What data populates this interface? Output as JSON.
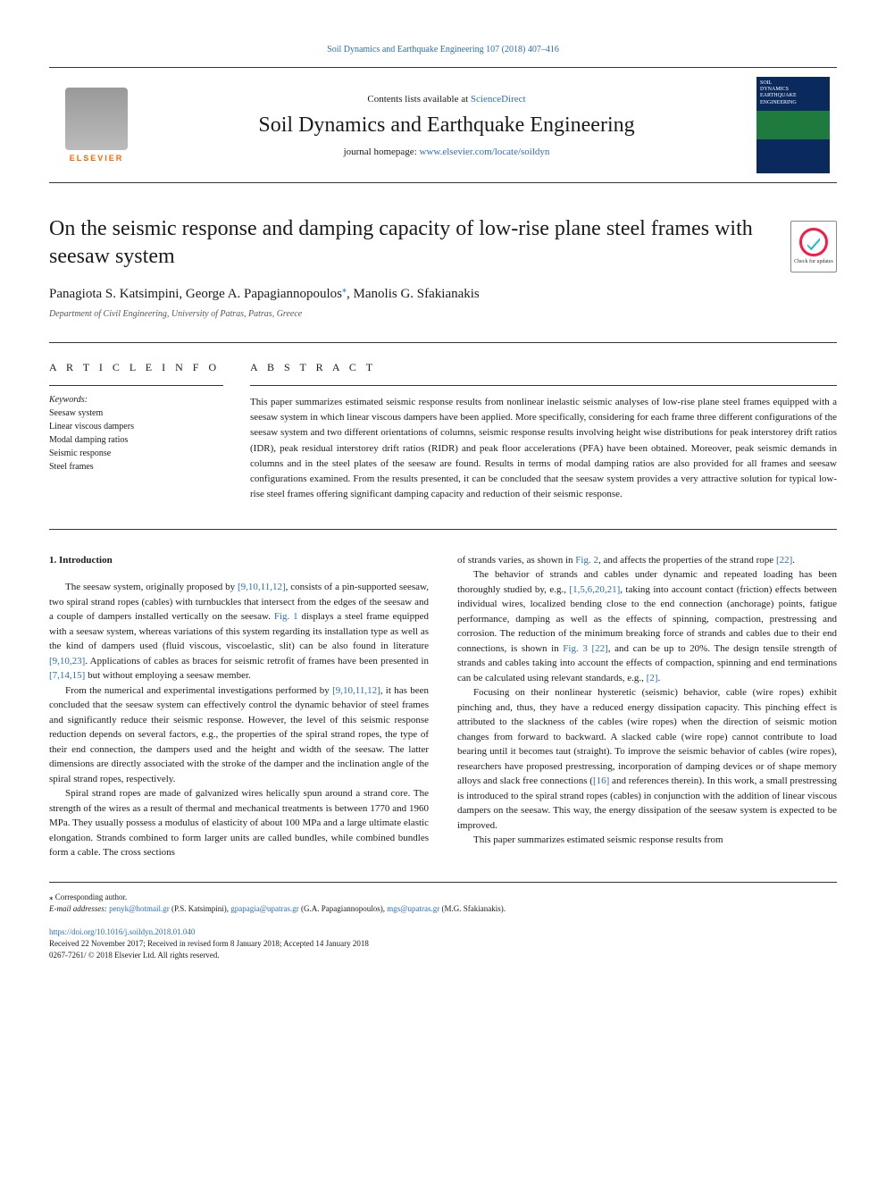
{
  "top_citation": "Soil Dynamics and Earthquake Engineering 107 (2018) 407–416",
  "header": {
    "contents_pre": "Contents lists available at ",
    "contents_link": "ScienceDirect",
    "journal_title": "Soil Dynamics and Earthquake Engineering",
    "homepage_pre": "journal homepage: ",
    "homepage_link": "www.elsevier.com/locate/soildyn",
    "publisher_name": "ELSEVIER",
    "cover_line1": "SOIL",
    "cover_line2": "DYNAMICS",
    "cover_line3": "EARTHQUAKE",
    "cover_line4": "ENGINEERING"
  },
  "check_updates": "Check for updates",
  "article": {
    "title": "On the seismic response and damping capacity of low-rise plane steel frames with seesaw system",
    "authors_pre": "Panagiota S. Katsimpini, George A. Papagiannopoulos",
    "authors_marker": "⁎",
    "authors_post": ", Manolis G. Sfakianakis",
    "affiliation": "Department of Civil Engineering, University of Patras, Patras, Greece"
  },
  "section_headings": {
    "article_info": "A R T I C L E  I N F O",
    "abstract": "A B S T R A C T"
  },
  "keywords": {
    "label": "Keywords:",
    "items": [
      "Seesaw system",
      "Linear viscous dampers",
      "Modal damping ratios",
      "Seismic response",
      "Steel frames"
    ]
  },
  "abstract": "This paper summarizes estimated seismic response results from nonlinear inelastic seismic analyses of low-rise plane steel frames equipped with a seesaw system in which linear viscous dampers have been applied. More specifically, considering for each frame three different configurations of the seesaw system and two different orientations of columns, seismic response results involving height wise distributions for peak interstorey drift ratios (IDR), peak residual interstorey drift ratios (RIDR) and peak floor accelerations (PFA) have been obtained. Moreover, peak seismic demands in columns and in the steel plates of the seesaw are found. Results in terms of modal damping ratios are also provided for all frames and seesaw configurations examined. From the results presented, it can be concluded that the seesaw system provides a very attractive solution for typical low-rise steel frames offering significant damping capacity and reduction of their seismic response.",
  "body": {
    "intro_heading": "1. Introduction",
    "left": [
      {
        "indent": true,
        "runs": [
          {
            "t": "The seesaw system, originally proposed by "
          },
          {
            "t": "[9,10,11,12]",
            "link": true
          },
          {
            "t": ", consists of a pin-supported seesaw, two spiral strand ropes (cables) with turnbuckles that intersect from the edges of the seesaw and a couple of dampers installed vertically on the seesaw. "
          },
          {
            "t": "Fig. 1",
            "link": true
          },
          {
            "t": " displays a steel frame equipped with a seesaw system, whereas variations of this system regarding its installation type as well as the kind of dampers used (fluid viscous, viscoelastic, slit) can be also found in literature "
          },
          {
            "t": "[9,10,23]",
            "link": true
          },
          {
            "t": ". Applications of cables as braces for seismic retrofit of frames have been presented in "
          },
          {
            "t": "[7,14,15]",
            "link": true
          },
          {
            "t": " but without employing a seesaw member."
          }
        ]
      },
      {
        "indent": true,
        "runs": [
          {
            "t": "From the numerical and experimental investigations performed by "
          },
          {
            "t": "[9,10,11,12]",
            "link": true
          },
          {
            "t": ", it has been concluded that the seesaw system can effectively control the dynamic behavior of steel frames and significantly reduce their seismic response. However, the level of this seismic response reduction depends on several factors, e.g., the properties of the spiral strand ropes, the type of their end connection, the dampers used and the height and width of the seesaw. The latter dimensions are directly associated with the stroke of the damper and the inclination angle of the spiral strand ropes, respectively."
          }
        ]
      },
      {
        "indent": true,
        "runs": [
          {
            "t": "Spiral strand ropes are made of galvanized wires helically spun around a strand core. The strength of the wires as a result of thermal and mechanical treatments is between 1770 and 1960 MPa. They usually possess a modulus of elasticity of about 100 MPa and a large ultimate elastic elongation. Strands combined to form larger units are called bundles, while combined bundles form a cable. The cross sections"
          }
        ]
      }
    ],
    "right": [
      {
        "indent": false,
        "runs": [
          {
            "t": "of strands varies, as shown in "
          },
          {
            "t": "Fig. 2",
            "link": true
          },
          {
            "t": ", and affects the properties of the strand rope "
          },
          {
            "t": "[22]",
            "link": true
          },
          {
            "t": "."
          }
        ]
      },
      {
        "indent": true,
        "runs": [
          {
            "t": "The behavior of strands and cables under dynamic and repeated loading has been thoroughly studied by, e.g., "
          },
          {
            "t": "[1,5,6,20,21]",
            "link": true
          },
          {
            "t": ", taking into account contact (friction) effects between individual wires, localized bending close to the end connection (anchorage) points, fatigue performance, damping as well as the effects of spinning, compaction, prestressing and corrosion. The reduction of the minimum breaking force of strands and cables due to their end connections, is shown in "
          },
          {
            "t": "Fig. 3",
            "link": true
          },
          {
            "t": " "
          },
          {
            "t": "[22]",
            "link": true
          },
          {
            "t": ", and can be up to 20%. The design tensile strength of strands and cables taking into account the effects of compaction, spinning and end terminations can be calculated using relevant standards, e.g., "
          },
          {
            "t": "[2]",
            "link": true
          },
          {
            "t": "."
          }
        ]
      },
      {
        "indent": true,
        "runs": [
          {
            "t": "Focusing on their nonlinear hysteretic (seismic) behavior, cable (wire ropes) exhibit pinching and, thus, they have a reduced energy dissipation capacity. This pinching effect is attributed to the slackness of the cables (wire ropes) when the direction of seismic motion changes from forward to backward. A slacked cable (wire rope) cannot contribute to load bearing until it becomes taut (straight). To improve the seismic behavior of cables (wire ropes), researchers have proposed prestressing, incorporation of damping devices or of shape memory alloys and slack free connections ("
          },
          {
            "t": "[16]",
            "link": true
          },
          {
            "t": " and references therein). In this work, a small prestressing is introduced to the spiral strand ropes (cables) in conjunction with the addition of linear viscous dampers on the seesaw. This way, the energy dissipation of the seesaw system is expected to be improved."
          }
        ]
      },
      {
        "indent": true,
        "runs": [
          {
            "t": "This paper summarizes estimated seismic response results from"
          }
        ]
      }
    ]
  },
  "footnotes": {
    "corresponding": "⁎ Corresponding author.",
    "email_label": "E-mail addresses:",
    "email1": "penyk@hotmail.gr",
    "email1_name": " (P.S. Katsimpini), ",
    "email2": "gpapagia@upatras.gr",
    "email2_name": " (G.A. Papagiannopoulos), ",
    "email3": "mgs@upatras.gr",
    "email3_name": " (M.G. Sfakianakis)."
  },
  "doi": {
    "link": "https://doi.org/10.1016/j.soildyn.2018.01.040",
    "received": "Received 22 November 2017; Received in revised form 8 January 2018; Accepted 14 January 2018",
    "copyright": "0267-7261/ © 2018 Elsevier Ltd. All rights reserved."
  },
  "colors": {
    "link": "#2a6ebb",
    "elsevier_orange": "#ff6600",
    "text": "#1a1a1a",
    "muted": "#555555"
  }
}
